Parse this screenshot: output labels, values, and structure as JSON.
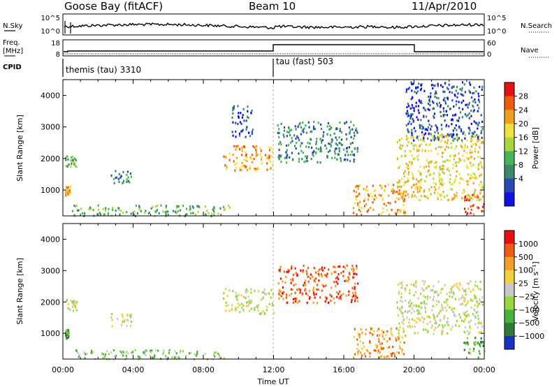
{
  "header": {
    "radar": "Goose Bay (fitACF)",
    "beam": "Beam 10",
    "date": "11/Apr/2010"
  },
  "top_panels": {
    "nsky_label": "N.Sky",
    "nsky_ticks": [
      "10^5",
      "10^0"
    ],
    "nsearch_label": "N.Search",
    "freq_label_line1": "Freq.",
    "freq_label_line2": "[MHz]",
    "freq_ticks": [
      "18",
      "8"
    ],
    "nave_label": "Nave",
    "nave_ticks": [
      "60",
      "0"
    ],
    "cpid_label": "CPID",
    "cpid_segments": [
      {
        "name": "themis (tau)",
        "id": "3310",
        "start_hour": 0.0
      },
      {
        "name": "tau (fast)",
        "id": "503",
        "start_hour": 12.0
      }
    ]
  },
  "chart_data": [
    {
      "type": "heatmap",
      "panel": "power",
      "ylabel": "Slant Range [km]",
      "yticks": [
        1000,
        2000,
        3000,
        4000
      ],
      "ylim": [
        180,
        4500
      ],
      "xlim_hours": [
        0,
        24
      ],
      "colorbar": {
        "label": "Power [dB]",
        "ticks": [
          "28",
          "24",
          "20",
          "16",
          "12",
          "8",
          "4"
        ],
        "colors": [
          "#1010e6",
          "#2848b4",
          "#3a8a6a",
          "#48b45a",
          "#a8d83c",
          "#f0e040",
          "#f0a020",
          "#f05a10",
          "#e61010"
        ]
      },
      "echo_regions": [
        {
          "t0": 0.1,
          "t1": 0.8,
          "r0": 1750,
          "r1": 2100,
          "level": 3
        },
        {
          "t0": 0.1,
          "t1": 0.4,
          "r0": 850,
          "r1": 1150,
          "level": 6
        },
        {
          "t0": 2.7,
          "t1": 3.9,
          "r0": 1250,
          "r1": 1650,
          "level": 2
        },
        {
          "t0": 0.5,
          "t1": 9.5,
          "r0": 200,
          "r1": 550,
          "level": 3
        },
        {
          "t0": 9.1,
          "t1": 12.0,
          "r0": 1650,
          "r1": 2450,
          "level": 6
        },
        {
          "t0": 9.6,
          "t1": 10.8,
          "r0": 2700,
          "r1": 3700,
          "level": 1
        },
        {
          "t0": 12.2,
          "t1": 16.8,
          "r0": 1900,
          "r1": 3200,
          "level": 2
        },
        {
          "t0": 16.5,
          "t1": 19.5,
          "r0": 250,
          "r1": 1200,
          "level": 6
        },
        {
          "t0": 19.0,
          "t1": 23.9,
          "r0": 700,
          "r1": 2800,
          "level": 5
        },
        {
          "t0": 19.5,
          "t1": 23.9,
          "r0": 2600,
          "r1": 4450,
          "level": 1
        },
        {
          "t0": 22.8,
          "t1": 24.0,
          "r0": 250,
          "r1": 900,
          "level": 7
        }
      ]
    },
    {
      "type": "heatmap",
      "panel": "velocity",
      "ylabel": "Slant Range [km]",
      "yticks": [
        1000,
        2000,
        3000,
        4000
      ],
      "ylim": [
        180,
        4500
      ],
      "xlim_hours": [
        0,
        24
      ],
      "colorbar": {
        "label": "Velocity [m s⁻¹]",
        "ticks": [
          "1000",
          "500",
          "100",
          "25",
          "−25",
          "−100",
          "−500",
          "−1000"
        ],
        "colors": [
          "#1a2ec8",
          "#2e7a3c",
          "#46b43c",
          "#96d83c",
          "#c8c8c8",
          "#f0d23c",
          "#f0a028",
          "#f05a14",
          "#e61010"
        ]
      },
      "echo_regions": [
        {
          "t0": 0.1,
          "t1": 0.8,
          "r0": 1750,
          "r1": 2100,
          "level": 4
        },
        {
          "t0": 0.1,
          "t1": 0.3,
          "r0": 850,
          "r1": 1150,
          "level": 2
        },
        {
          "t0": 2.7,
          "t1": 3.9,
          "r0": 1250,
          "r1": 1650,
          "level": 4
        },
        {
          "t0": 0.5,
          "t1": 9.5,
          "r0": 200,
          "r1": 500,
          "level": 3
        },
        {
          "t0": 9.1,
          "t1": 12.0,
          "r0": 1650,
          "r1": 2450,
          "level": 4
        },
        {
          "t0": 12.2,
          "t1": 16.8,
          "r0": 2000,
          "r1": 3200,
          "level": 7
        },
        {
          "t0": 16.5,
          "t1": 19.5,
          "r0": 250,
          "r1": 1200,
          "level": 6
        },
        {
          "t0": 19.0,
          "t1": 23.9,
          "r0": 1000,
          "r1": 2700,
          "level": 4
        },
        {
          "t0": 22.8,
          "t1": 24.0,
          "r0": 250,
          "r1": 900,
          "level": 2
        }
      ]
    }
  ],
  "x_axis": {
    "tick_labels": [
      "00:00",
      "04:00",
      "08:00",
      "12:00",
      "16:00",
      "20:00",
      "00:00"
    ],
    "label": "Time UT"
  }
}
